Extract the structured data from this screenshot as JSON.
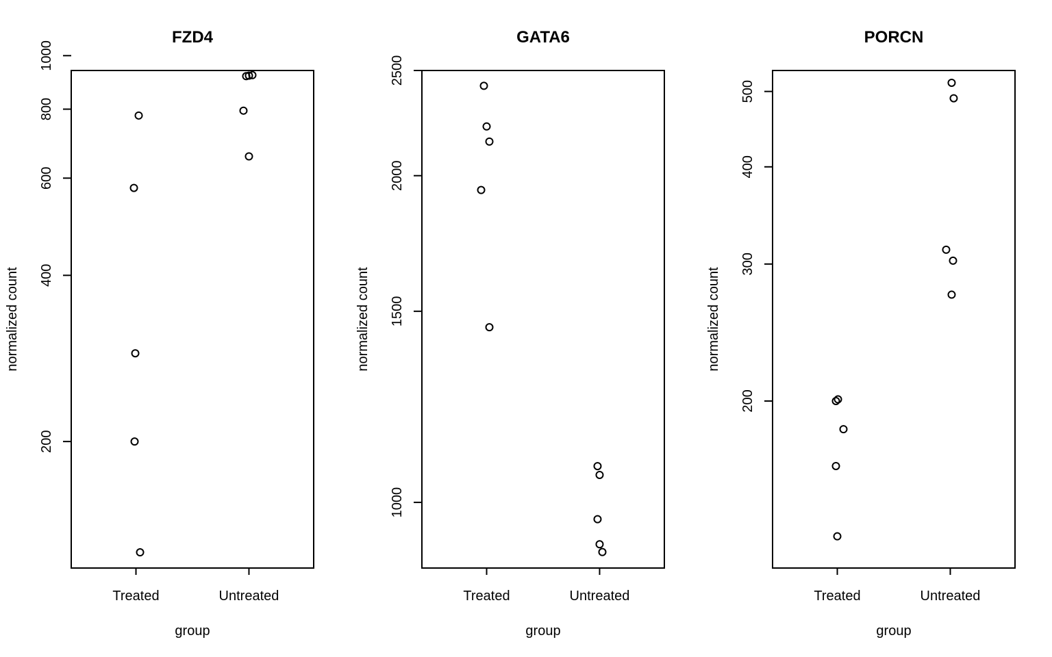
{
  "chart_data": [
    {
      "type": "scatter",
      "title": "FZD4",
      "xlabel": "group",
      "ylabel": "normalized count",
      "y_scale": "log",
      "categories": [
        "Treated",
        "Untreated"
      ],
      "yticks": [
        200,
        400,
        600,
        800,
        1000
      ],
      "ylim": [
        118,
        940
      ],
      "points": [
        {
          "group": "Treated",
          "values": [
            779,
            576,
            289,
            200,
            126
          ]
        },
        {
          "group": "Untreated",
          "values": [
            918,
            920,
            922,
            795,
            657
          ]
        }
      ]
    },
    {
      "type": "scatter",
      "title": "GATA6",
      "xlabel": "group",
      "ylabel": "normalized count",
      "y_scale": "log",
      "categories": [
        "Treated",
        "Untreated"
      ],
      "yticks": [
        1000,
        1500,
        2000,
        2500
      ],
      "ylim": [
        870,
        2500
      ],
      "points": [
        {
          "group": "Treated",
          "values": [
            2420,
            2220,
            2150,
            1940,
            1450
          ]
        },
        {
          "group": "Untreated",
          "values": [
            1080,
            1060,
            965,
            915,
            900
          ]
        }
      ]
    },
    {
      "type": "scatter",
      "title": "PORCN",
      "xlabel": "group",
      "ylabel": "normalized count",
      "y_scale": "log",
      "categories": [
        "Treated",
        "Untreated"
      ],
      "yticks": [
        200,
        300,
        400,
        500
      ],
      "ylim": [
        122,
        532
      ],
      "points": [
        {
          "group": "Treated",
          "values": [
            200,
            201,
            184,
            165,
            134
          ]
        },
        {
          "group": "Untreated",
          "values": [
            513,
            490,
            313,
            303,
            274
          ]
        }
      ]
    }
  ]
}
